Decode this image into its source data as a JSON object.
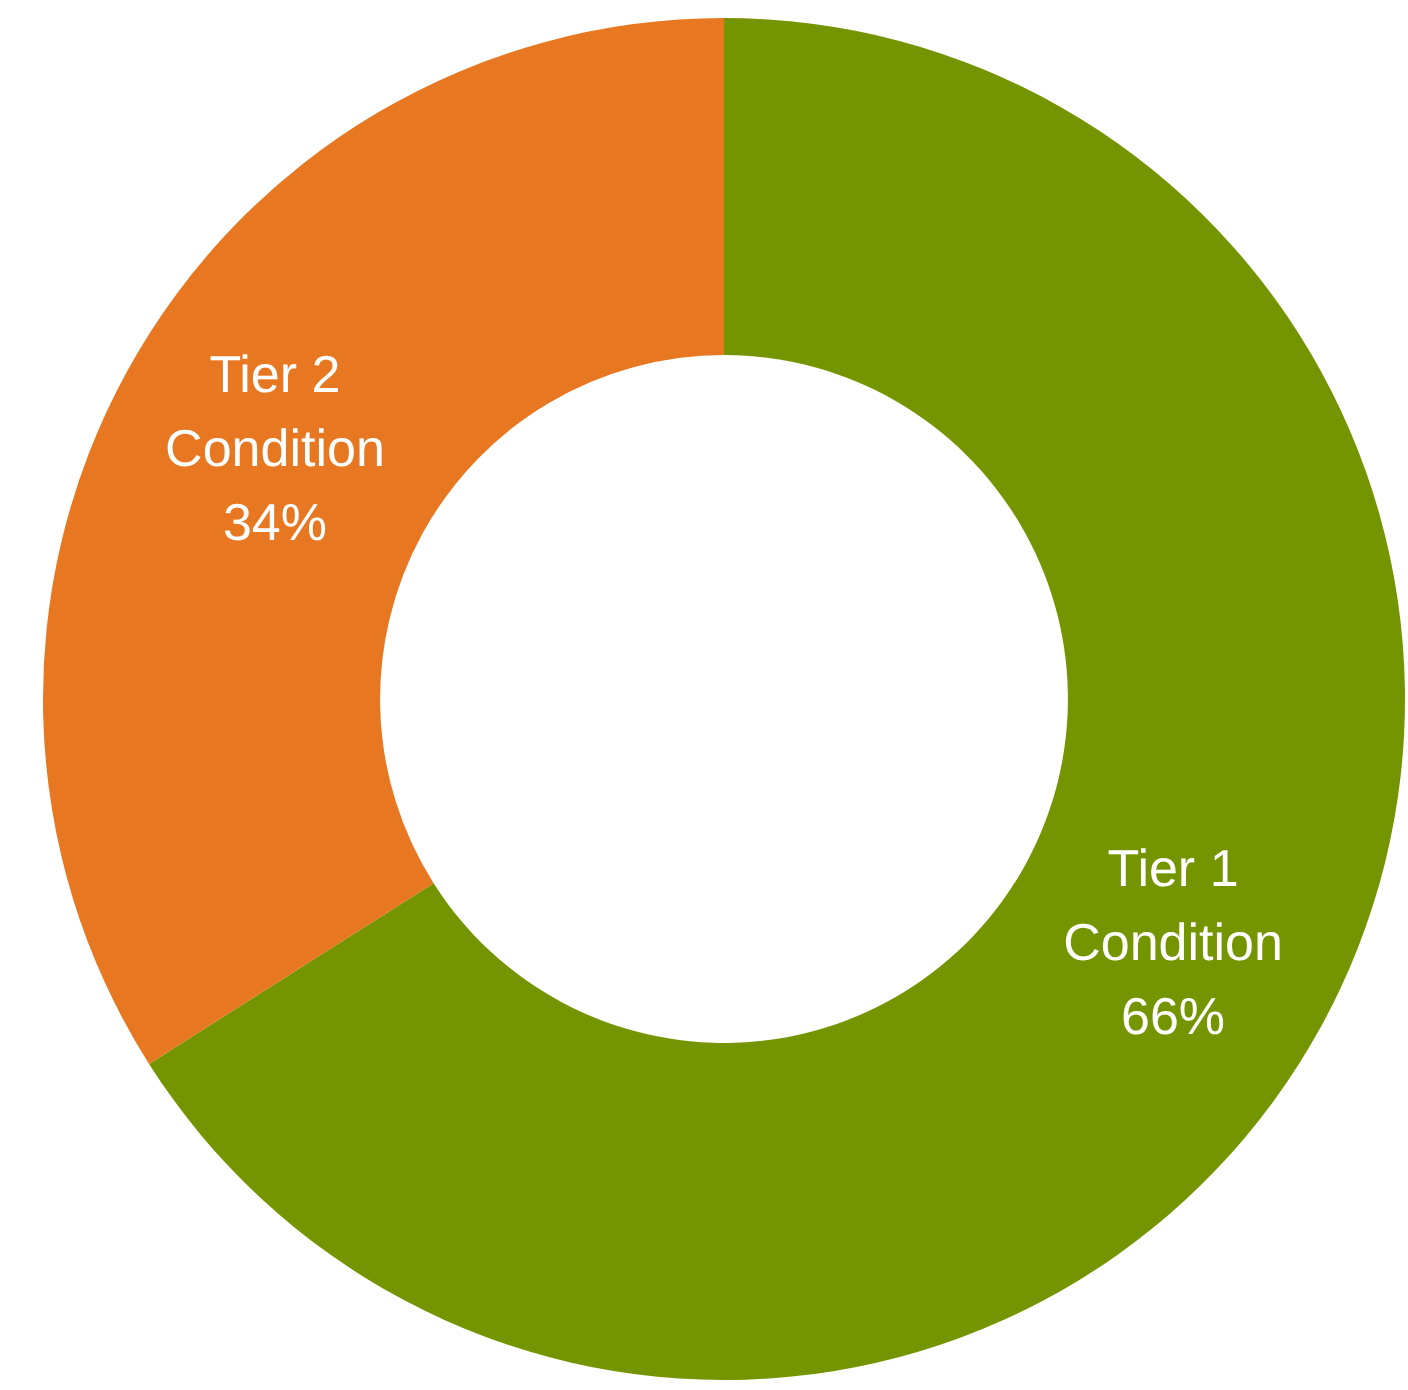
{
  "chart_data": {
    "type": "donut",
    "categories": [
      "Tier 1 Condition",
      "Tier 2 Condition"
    ],
    "values": [
      66,
      34
    ],
    "colors": [
      "#759500",
      "#e87722"
    ],
    "value_labels": [
      "66%",
      "34%"
    ]
  }
}
